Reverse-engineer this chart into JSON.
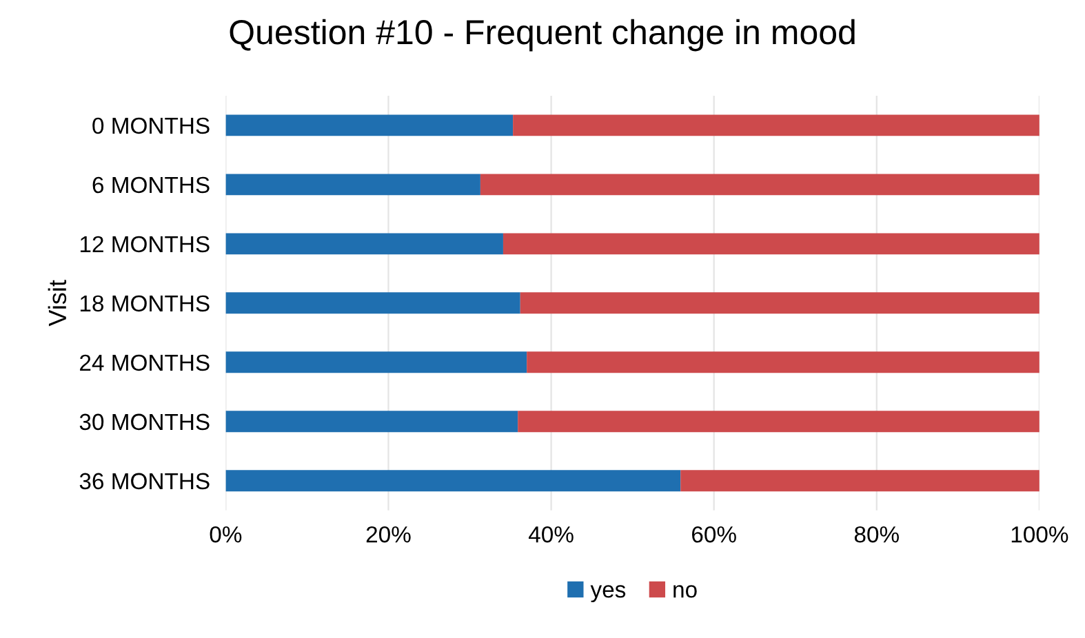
{
  "chart_data": {
    "type": "bar",
    "orientation": "horizontal",
    "stacked": true,
    "title": "Question #10 - Frequent change in mood",
    "ylabel": "Visit",
    "categories": [
      "0 MONTHS",
      "6 MONTHS",
      "12 MONTHS",
      "18 MONTHS",
      "24 MONTHS",
      "30 MONTHS",
      "36 MONTHS"
    ],
    "series": [
      {
        "name": "yes",
        "color": "#1f6fb0",
        "values": [
          35.3,
          31.3,
          34.1,
          36.2,
          37.0,
          35.9,
          55.9
        ]
      },
      {
        "name": "no",
        "color": "#cd4a4c",
        "values": [
          64.7,
          68.7,
          65.9,
          63.8,
          63.0,
          64.1,
          44.1
        ]
      }
    ],
    "xlim": [
      0,
      100
    ],
    "xticks": [
      {
        "value": 0,
        "label": "0%"
      },
      {
        "value": 20,
        "label": "20%"
      },
      {
        "value": 40,
        "label": "40%"
      },
      {
        "value": 60,
        "label": "60%"
      },
      {
        "value": 80,
        "label": "80%"
      },
      {
        "value": 100,
        "label": "100%"
      }
    ],
    "grid": "x",
    "legend": "bottom"
  }
}
